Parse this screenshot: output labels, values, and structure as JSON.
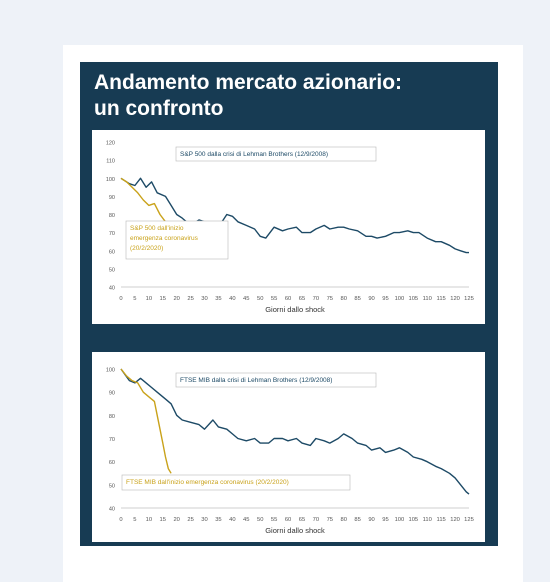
{
  "title": {
    "line1": "Andamento mercato azionario:",
    "line2": "un confronto"
  },
  "colors": {
    "lehman": "#1d4a66",
    "covid": "#c9a21a",
    "panel": "#173b53",
    "axis_text": "#555555"
  },
  "chart_data": [
    {
      "type": "line",
      "xlabel": "Giorni dallo shock",
      "ylabel": "",
      "xlim": [
        0,
        125
      ],
      "ylim": [
        40,
        120
      ],
      "y_ticks": [
        "40",
        "50",
        "60",
        "70",
        "80",
        "90",
        "100",
        "110",
        "120"
      ],
      "x_ticks": [
        "0",
        "5",
        "10",
        "15",
        "20",
        "25",
        "30",
        "35",
        "40",
        "45",
        "50",
        "55",
        "60",
        "65",
        "70",
        "75",
        "80",
        "85",
        "90",
        "95",
        "100",
        "105",
        "110",
        "115",
        "120",
        "125"
      ],
      "legend": "none",
      "series": [
        {
          "name": "S&P 500 dalla crisi di Lehman Brothers (12/9/2008)",
          "color": "#1d4a66",
          "x": [
            0,
            3,
            5,
            7,
            9,
            11,
            13,
            16,
            18,
            20,
            22,
            25,
            28,
            30,
            33,
            35,
            38,
            40,
            42,
            45,
            48,
            50,
            52,
            55,
            58,
            60,
            63,
            65,
            68,
            70,
            73,
            75,
            78,
            80,
            82,
            85,
            88,
            90,
            92,
            95,
            98,
            100,
            103,
            105,
            107,
            110,
            113,
            115,
            118,
            120,
            122,
            124,
            125
          ],
          "y": [
            100,
            97,
            96,
            100,
            95,
            98,
            92,
            90,
            85,
            80,
            78,
            74,
            77,
            76,
            75,
            73,
            80,
            79,
            76,
            74,
            72,
            68,
            67,
            73,
            71,
            72,
            73,
            70,
            70,
            72,
            74,
            72,
            73,
            73,
            72,
            71,
            68,
            68,
            67,
            68,
            70,
            70,
            71,
            70,
            70,
            67,
            65,
            65,
            63,
            61,
            60,
            59,
            59
          ]
        },
        {
          "name": "S&P 500 dall'inizio emergenza coronavirus (20/2/2020)",
          "color": "#c9a21a",
          "x": [
            0,
            2,
            4,
            6,
            8,
            10,
            12,
            14,
            16,
            18
          ],
          "y": [
            100,
            98,
            95,
            92,
            88,
            85,
            86,
            80,
            76,
            70
          ]
        }
      ],
      "annotations": [
        "S&P 500 dalla crisi di Lehman Brothers (12/9/2008)",
        "S&P 500 dall'inizio emergenza coronavirus (20/2/2020)"
      ]
    },
    {
      "type": "line",
      "xlabel": "Giorni dallo shock",
      "ylabel": "",
      "xlim": [
        0,
        125
      ],
      "ylim": [
        40,
        100
      ],
      "y_ticks": [
        "40",
        "50",
        "60",
        "70",
        "80",
        "90",
        "100"
      ],
      "x_ticks": [
        "0",
        "5",
        "10",
        "15",
        "20",
        "25",
        "30",
        "35",
        "40",
        "45",
        "50",
        "55",
        "60",
        "65",
        "70",
        "75",
        "80",
        "85",
        "90",
        "95",
        "100",
        "105",
        "110",
        "115",
        "120",
        "125"
      ],
      "legend": "none",
      "series": [
        {
          "name": "FTSE MIB dalla crisi di Lehman Brothers (12/9/2008)",
          "color": "#1d4a66",
          "x": [
            0,
            3,
            5,
            7,
            9,
            11,
            13,
            16,
            18,
            20,
            22,
            25,
            28,
            30,
            33,
            35,
            38,
            40,
            42,
            45,
            48,
            50,
            53,
            55,
            58,
            60,
            63,
            65,
            68,
            70,
            73,
            75,
            78,
            80,
            83,
            85,
            88,
            90,
            93,
            95,
            98,
            100,
            103,
            105,
            108,
            110,
            113,
            115,
            118,
            120,
            122,
            124,
            125
          ],
          "y": [
            100,
            95,
            94,
            96,
            94,
            92,
            90,
            87,
            85,
            80,
            78,
            77,
            76,
            74,
            78,
            75,
            74,
            72,
            70,
            69,
            70,
            68,
            68,
            70,
            70,
            69,
            70,
            68,
            67,
            70,
            69,
            68,
            70,
            72,
            70,
            68,
            67,
            65,
            66,
            64,
            65,
            66,
            64,
            62,
            61,
            60,
            58,
            57,
            55,
            53,
            50,
            47,
            46
          ]
        },
        {
          "name": "FTSE MIB dall'inizio emergenza coronavirus (20/2/2020)",
          "color": "#c9a21a",
          "x": [
            0,
            2,
            4,
            6,
            8,
            10,
            12,
            13,
            14,
            15,
            16,
            17,
            18
          ],
          "y": [
            100,
            97,
            95,
            94,
            90,
            88,
            86,
            80,
            74,
            68,
            62,
            57,
            55
          ]
        }
      ],
      "annotations": [
        "FTSE MIB dalla crisi di Lehman Brothers (12/9/2008)",
        "FTSE MIB dall'inizio emergenza coronavirus (20/2/2020)"
      ]
    }
  ]
}
